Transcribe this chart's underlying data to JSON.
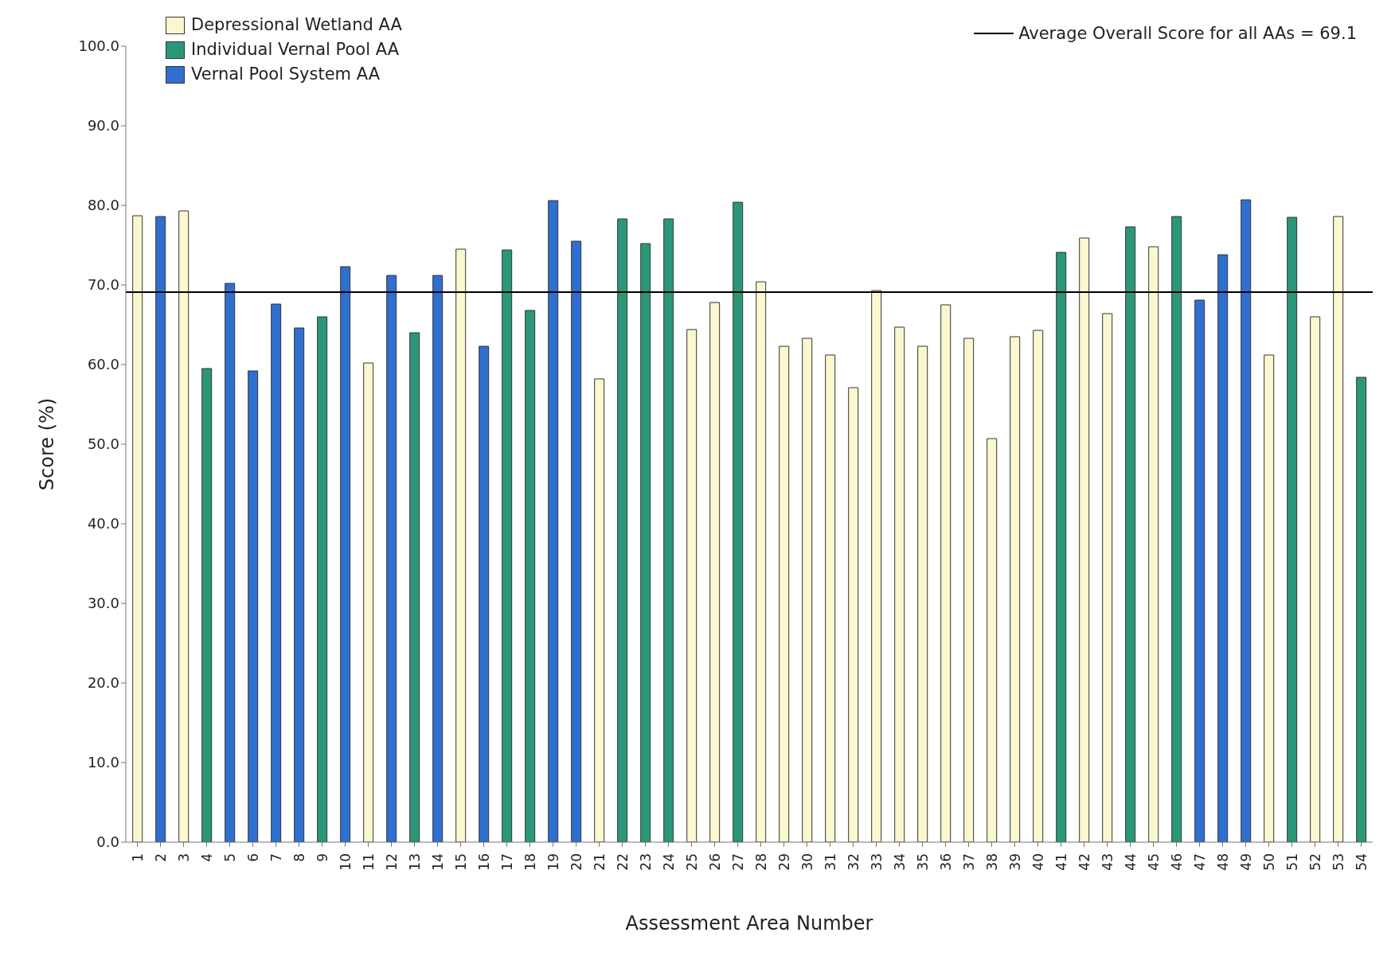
{
  "chart_data": {
    "type": "bar",
    "xlabel": "Assessment Area Number",
    "ylabel": "Score (%)",
    "categories": [
      "1",
      "2",
      "3",
      "4",
      "5",
      "6",
      "7",
      "8",
      "9",
      "10",
      "11",
      "12",
      "13",
      "14",
      "15",
      "16",
      "17",
      "18",
      "19",
      "20",
      "21",
      "22",
      "23",
      "24",
      "25",
      "26",
      "27",
      "28",
      "29",
      "30",
      "31",
      "32",
      "33",
      "34",
      "35",
      "36",
      "37",
      "38",
      "39",
      "40",
      "41",
      "42",
      "43",
      "44",
      "45",
      "46",
      "47",
      "48",
      "49",
      "50",
      "51",
      "52",
      "53",
      "54"
    ],
    "stacked": true,
    "series": [
      {
        "name": "Depressional Wetland AA",
        "color": "#fbf8cf",
        "values": [
          78.7,
          null,
          79.3,
          null,
          null,
          null,
          null,
          null,
          null,
          null,
          60.2,
          null,
          null,
          null,
          74.5,
          null,
          null,
          null,
          null,
          null,
          58.2,
          null,
          null,
          null,
          64.4,
          67.8,
          null,
          70.4,
          62.3,
          63.3,
          61.2,
          57.1,
          69.3,
          64.7,
          62.3,
          67.5,
          63.3,
          50.7,
          63.5,
          64.3,
          null,
          75.9,
          66.4,
          null,
          74.8,
          null,
          null,
          null,
          null,
          61.2,
          null,
          66.0,
          78.6,
          null
        ]
      },
      {
        "name": "Individual Vernal Pool AA",
        "color": "#2a9878",
        "values": [
          null,
          null,
          null,
          59.5,
          null,
          null,
          null,
          null,
          66.0,
          null,
          null,
          null,
          64.0,
          null,
          null,
          null,
          74.4,
          66.8,
          null,
          null,
          null,
          78.3,
          75.2,
          78.3,
          null,
          null,
          80.4,
          null,
          null,
          null,
          null,
          null,
          null,
          null,
          null,
          null,
          null,
          null,
          null,
          null,
          74.1,
          null,
          null,
          77.3,
          null,
          78.6,
          null,
          null,
          null,
          null,
          78.5,
          null,
          null,
          58.4
        ]
      },
      {
        "name": "Vernal Pool System AA",
        "color": "#2f6fd0",
        "values": [
          null,
          78.6,
          null,
          null,
          70.2,
          59.2,
          67.6,
          64.6,
          null,
          72.3,
          null,
          71.2,
          null,
          71.2,
          null,
          62.3,
          null,
          null,
          80.6,
          75.5,
          null,
          null,
          null,
          null,
          null,
          null,
          null,
          null,
          null,
          null,
          null,
          null,
          null,
          null,
          null,
          null,
          null,
          null,
          null,
          null,
          null,
          null,
          null,
          null,
          null,
          null,
          68.1,
          73.8,
          80.7,
          null,
          null,
          null,
          null,
          null
        ]
      }
    ],
    "ylim": [
      0,
      100
    ],
    "yticks": [
      {
        "value": 0,
        "label": "0.0"
      },
      {
        "value": 10,
        "label": "10.0"
      },
      {
        "value": 20,
        "label": "20.0"
      },
      {
        "value": 30,
        "label": "30.0"
      },
      {
        "value": 40,
        "label": "40.0"
      },
      {
        "value": 50,
        "label": "50.0"
      },
      {
        "value": 60,
        "label": "60.0"
      },
      {
        "value": 70,
        "label": "70.0"
      },
      {
        "value": 80,
        "label": "80.0"
      },
      {
        "value": 90,
        "label": "90.0"
      },
      {
        "value": 100,
        "label": "100.0"
      }
    ],
    "ref_lines": [
      {
        "axis": "y",
        "value": 69.1,
        "label": "Average Overall Score for all AAs = 69.1",
        "color": "#000000"
      }
    ],
    "legend": "top left"
  }
}
